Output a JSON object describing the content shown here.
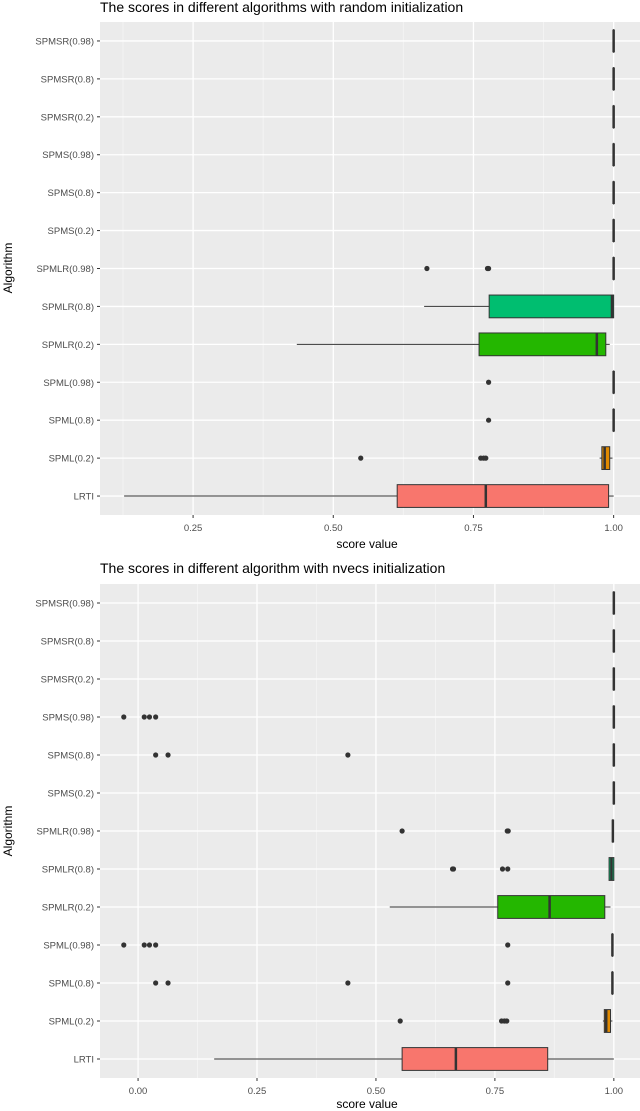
{
  "chart_data": [
    {
      "type": "boxplot",
      "orientation": "horizontal",
      "title": "The scores in different algorithms with random initialization",
      "xlabel": "score value",
      "ylabel": "Algorithm",
      "xlim": [
        0.084,
        1.047
      ],
      "xticks": [
        0.25,
        0.5,
        0.75,
        1.0
      ],
      "xtick_labels": [
        "0.25",
        "0.50",
        "0.75",
        "1.00"
      ],
      "grid": true,
      "categories": [
        "SPMSR(0.98)",
        "SPMSR(0.8)",
        "SPMSR(0.2)",
        "SPMS(0.98)",
        "SPMS(0.8)",
        "SPMS(0.2)",
        "SPMLR(0.98)",
        "SPMLR(0.8)",
        "SPMLR(0.2)",
        "SPML(0.98)",
        "SPML(0.8)",
        "SPML(0.2)",
        "LRTI"
      ],
      "colors": [
        "#FF65AC",
        "#F962DD",
        "#D575FE",
        "#8B93FF",
        "#00ACFC",
        "#00BBDA",
        "#00C1AB",
        "#00BE70",
        "#24B700",
        "#8CAB00",
        "#BE9C00",
        "#E18A00",
        "#F8766D"
      ],
      "boxes": [
        {
          "min": 1.0,
          "q1": 1.0,
          "median": 1.0,
          "q3": 1.0,
          "max": 1.0,
          "outliers": []
        },
        {
          "min": 1.0,
          "q1": 1.0,
          "median": 1.0,
          "q3": 1.0,
          "max": 1.0,
          "outliers": []
        },
        {
          "min": 1.0,
          "q1": 1.0,
          "median": 1.0,
          "q3": 1.0,
          "max": 1.0,
          "outliers": []
        },
        {
          "min": 1.0,
          "q1": 1.0,
          "median": 1.0,
          "q3": 1.0,
          "max": 1.0,
          "outliers": []
        },
        {
          "min": 1.0,
          "q1": 1.0,
          "median": 1.0,
          "q3": 1.0,
          "max": 1.0,
          "outliers": []
        },
        {
          "min": 1.0,
          "q1": 1.0,
          "median": 1.0,
          "q3": 1.0,
          "max": 1.0,
          "outliers": []
        },
        {
          "min": 1.0,
          "q1": 1.0,
          "median": 1.0,
          "q3": 1.0,
          "max": 1.0,
          "outliers": [
            0.667,
            0.775,
            0.777
          ]
        },
        {
          "min": 0.662,
          "q1": 0.778,
          "median": 0.997,
          "q3": 1.0,
          "max": 1.0,
          "outliers": []
        },
        {
          "min": 0.435,
          "q1": 0.76,
          "median": 0.97,
          "q3": 0.986,
          "max": 0.993,
          "outliers": []
        },
        {
          "min": 1.0,
          "q1": 1.0,
          "median": 1.0,
          "q3": 1.0,
          "max": 1.0,
          "outliers": [
            0.777
          ]
        },
        {
          "min": 1.0,
          "q1": 1.0,
          "median": 1.0,
          "q3": 1.0,
          "max": 1.0,
          "outliers": [
            0.777
          ]
        },
        {
          "min": 0.975,
          "q1": 0.979,
          "median": 0.984,
          "q3": 0.993,
          "max": 0.998,
          "outliers": [
            0.549,
            0.763,
            0.768,
            0.772
          ]
        },
        {
          "min": 0.127,
          "q1": 0.614,
          "median": 0.772,
          "q3": 0.991,
          "max": 1.0,
          "outliers": []
        }
      ]
    },
    {
      "type": "boxplot",
      "orientation": "horizontal",
      "title": "The scores in different algorithm with nvecs initialization",
      "xlabel": "score value",
      "ylabel": "Algorithm",
      "xlim": [
        -0.08,
        1.055
      ],
      "xticks": [
        0.0,
        0.25,
        0.5,
        0.75,
        1.0
      ],
      "xtick_labels": [
        "0.00",
        "0.25",
        "0.50",
        "0.75",
        "1.00"
      ],
      "grid": true,
      "categories": [
        "SPMSR(0.98)",
        "SPMSR(0.8)",
        "SPMSR(0.2)",
        "SPMS(0.98)",
        "SPMS(0.8)",
        "SPMS(0.2)",
        "SPMLR(0.98)",
        "SPMLR(0.8)",
        "SPMLR(0.2)",
        "SPML(0.98)",
        "SPML(0.8)",
        "SPML(0.2)",
        "LRTI"
      ],
      "colors": [
        "#FF65AC",
        "#F962DD",
        "#D575FE",
        "#8B93FF",
        "#00ACFC",
        "#00BBDA",
        "#00C1AB",
        "#00BE70",
        "#24B700",
        "#8CAB00",
        "#BE9C00",
        "#E18A00",
        "#F8766D"
      ],
      "boxes": [
        {
          "min": 1.0,
          "q1": 1.0,
          "median": 1.0,
          "q3": 1.0,
          "max": 1.0,
          "outliers": []
        },
        {
          "min": 1.0,
          "q1": 1.0,
          "median": 1.0,
          "q3": 1.0,
          "max": 1.0,
          "outliers": []
        },
        {
          "min": 1.0,
          "q1": 1.0,
          "median": 1.0,
          "q3": 1.0,
          "max": 1.0,
          "outliers": []
        },
        {
          "min": 1.0,
          "q1": 1.0,
          "median": 1.0,
          "q3": 1.0,
          "max": 1.0,
          "outliers": [
            -0.03,
            0.013,
            0.024,
            0.037
          ]
        },
        {
          "min": 1.0,
          "q1": 1.0,
          "median": 1.0,
          "q3": 1.0,
          "max": 1.0,
          "outliers": [
            0.037,
            0.063,
            0.441
          ]
        },
        {
          "min": 1.0,
          "q1": 1.0,
          "median": 1.0,
          "q3": 1.0,
          "max": 1.0,
          "outliers": []
        },
        {
          "min": 0.998,
          "q1": 0.998,
          "median": 0.998,
          "q3": 0.998,
          "max": 0.998,
          "outliers": [
            0.555,
            0.776,
            0.778
          ]
        },
        {
          "min": 0.99,
          "q1": 0.99,
          "median": 0.995,
          "q3": 1.0,
          "max": 1.0,
          "outliers": [
            0.661,
            0.663,
            0.766,
            0.777
          ]
        },
        {
          "min": 0.529,
          "q1": 0.756,
          "median": 0.865,
          "q3": 0.981,
          "max": 0.993,
          "outliers": []
        },
        {
          "min": 0.997,
          "q1": 0.997,
          "median": 0.997,
          "q3": 0.997,
          "max": 0.997,
          "outliers": [
            -0.03,
            0.013,
            0.024,
            0.037,
            0.777
          ]
        },
        {
          "min": 0.997,
          "q1": 0.997,
          "median": 0.997,
          "q3": 0.997,
          "max": 0.997,
          "outliers": [
            0.037,
            0.063,
            0.441,
            0.777
          ]
        },
        {
          "min": 0.977,
          "q1": 0.98,
          "median": 0.984,
          "q3": 0.993,
          "max": 0.997,
          "outliers": [
            0.551,
            0.764,
            0.77,
            0.775
          ]
        },
        {
          "min": 0.16,
          "q1": 0.555,
          "median": 0.668,
          "q3": 0.861,
          "max": 1.0,
          "outliers": []
        }
      ]
    }
  ]
}
